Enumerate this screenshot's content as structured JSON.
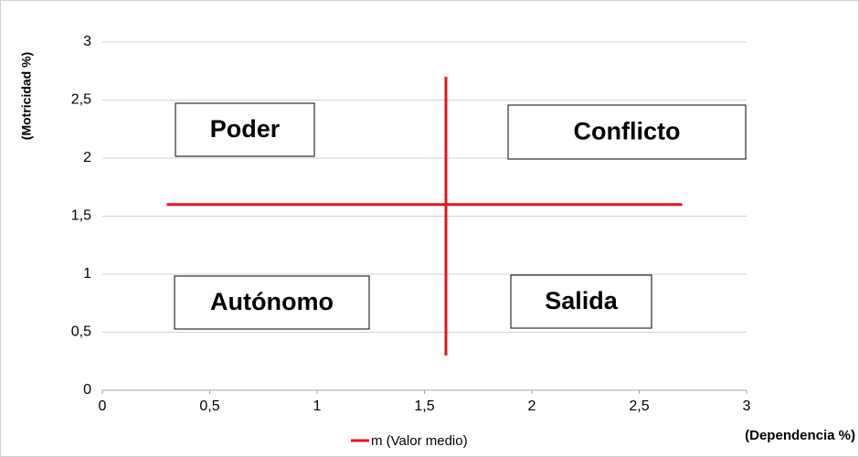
{
  "chart_data": {
    "type": "line",
    "x_label": "(Dependencia %)",
    "y_label": "(Motricidad %)",
    "series": [
      {
        "name": "m (Valor medio)",
        "color": "#e3141a",
        "x": [
          0.3,
          2.7,
          null,
          1.6,
          1.6
        ],
        "values": [
          1.6,
          1.6,
          null,
          2.7,
          0.3
        ]
      }
    ],
    "annotations": [
      "Poder",
      "Conflicto",
      "Autónomo",
      "Salida"
    ],
    "xlim": [
      0,
      3
    ],
    "ylim": [
      0,
      3
    ],
    "xticks": [
      0,
      {
        "value": 0.5,
        "label": "0,5"
      },
      1,
      {
        "value": 1.5,
        "label": "1,5"
      },
      2,
      {
        "value": 2.5,
        "label": "2,5"
      },
      3
    ],
    "yticks": [
      0,
      {
        "value": 0.5,
        "label": "0,5"
      },
      1,
      {
        "value": 1.5,
        "label": "1,5"
      },
      2,
      {
        "value": 2.5,
        "label": "2,5"
      },
      3
    ],
    "grid": true,
    "legend": "bottom"
  }
}
